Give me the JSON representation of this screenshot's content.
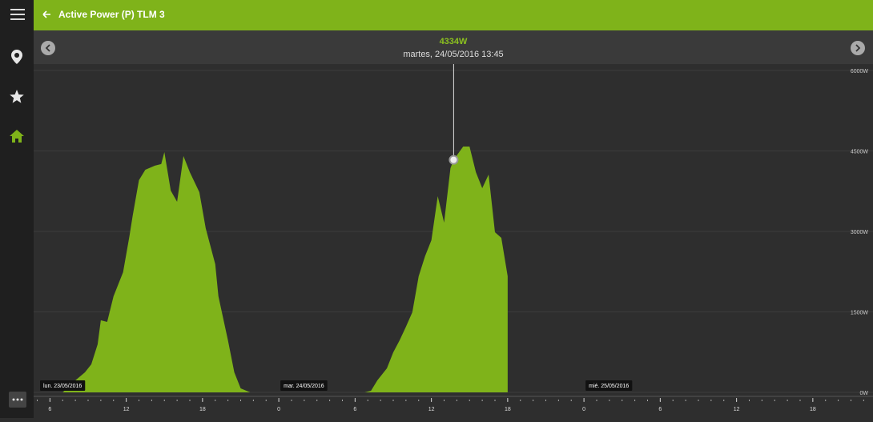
{
  "header": {
    "title": "Active Power (P) TLM 3"
  },
  "chart_data": {
    "type": "area",
    "cursor": {
      "x": "2016-05-24T13:45",
      "value": 4334,
      "value_label": "4334W",
      "date_label": "martes, 24/05/2016 13:45"
    },
    "x": [
      "2016-05-23T07:00",
      "2016-05-23T08:00",
      "2016-05-23T08:45",
      "2016-05-23T09:15",
      "2016-05-23T09:45",
      "2016-05-23T10:00",
      "2016-05-23T10:30",
      "2016-05-23T11:00",
      "2016-05-23T11:45",
      "2016-05-23T12:15",
      "2016-05-23T12:30",
      "2016-05-23T13:00",
      "2016-05-23T13:30",
      "2016-05-23T14:15",
      "2016-05-23T14:45",
      "2016-05-23T15:00",
      "2016-05-23T15:30",
      "2016-05-23T16:00",
      "2016-05-23T16:30",
      "2016-05-23T17:00",
      "2016-05-23T17:45",
      "2016-05-23T18:15",
      "2016-05-23T19:00",
      "2016-05-23T19:15",
      "2016-05-23T20:00",
      "2016-05-23T20:30",
      "2016-05-23T21:00",
      "2016-05-23T21:45",
      "2016-05-24T03:00",
      "2016-05-24T06:45",
      "2016-05-24T07:15",
      "2016-05-24T07:45",
      "2016-05-24T08:30",
      "2016-05-24T09:00",
      "2016-05-24T09:30",
      "2016-05-24T10:00",
      "2016-05-24T10:30",
      "2016-05-24T11:00",
      "2016-05-24T11:30",
      "2016-05-24T12:00",
      "2016-05-24T12:30",
      "2016-05-24T13:00",
      "2016-05-24T13:30",
      "2016-05-24T13:45",
      "2016-05-24T14:30",
      "2016-05-24T15:00",
      "2016-05-24T15:30",
      "2016-05-24T16:00",
      "2016-05-24T16:30",
      "2016-05-24T17:00",
      "2016-05-24T17:30",
      "2016-05-24T18:00"
    ],
    "series": [
      {
        "name": "Active Power (P) TLM 3",
        "color": "#7fb31a",
        "values": [
          0,
          224,
          373,
          522,
          896,
          1343,
          1313,
          1791,
          2239,
          2911,
          3284,
          3956,
          4150,
          4225,
          4255,
          4478,
          3762,
          3553,
          4404,
          4105,
          3732,
          3060,
          2389,
          1791,
          970,
          373,
          75,
          0,
          null,
          0,
          30,
          224,
          448,
          746,
          970,
          1224,
          1493,
          2164,
          2538,
          2836,
          3657,
          3165,
          4180,
          4334,
          4583,
          4583,
          4105,
          3806,
          4060,
          2985,
          2881,
          2164
        ]
      }
    ],
    "xlim": [
      "2016-05-23T04:43",
      "2016-05-25T22:44"
    ],
    "xticks": [
      {
        "value": "2016-05-23T06:00",
        "label": "6"
      },
      {
        "value": "2016-05-23T12:00",
        "label": "12"
      },
      {
        "value": "2016-05-23T18:00",
        "label": "18"
      },
      {
        "value": "2016-05-24T00:00",
        "label": "0"
      },
      {
        "value": "2016-05-24T06:00",
        "label": "6"
      },
      {
        "value": "2016-05-24T12:00",
        "label": "12"
      },
      {
        "value": "2016-05-24T18:00",
        "label": "18"
      },
      {
        "value": "2016-05-25T00:00",
        "label": "0"
      },
      {
        "value": "2016-05-25T06:00",
        "label": "6"
      },
      {
        "value": "2016-05-25T12:00",
        "label": "12"
      },
      {
        "value": "2016-05-25T18:00",
        "label": "18"
      }
    ],
    "day_labels": [
      {
        "x": "2016-05-23T00:00",
        "label": "lun. 23/05/2016"
      },
      {
        "x": "2016-05-24T00:00",
        "label": "mar. 24/05/2016"
      },
      {
        "x": "2016-05-25T00:00",
        "label": "mié. 25/05/2016"
      }
    ],
    "ylim": [
      0,
      6000
    ],
    "yticks": [
      {
        "value": 0,
        "label": "0W"
      },
      {
        "value": 1500,
        "label": "1500W"
      },
      {
        "value": 3000,
        "label": "3000W"
      },
      {
        "value": 4500,
        "label": "4500W"
      },
      {
        "value": 6000,
        "label": "6000W"
      }
    ],
    "grid": true
  }
}
